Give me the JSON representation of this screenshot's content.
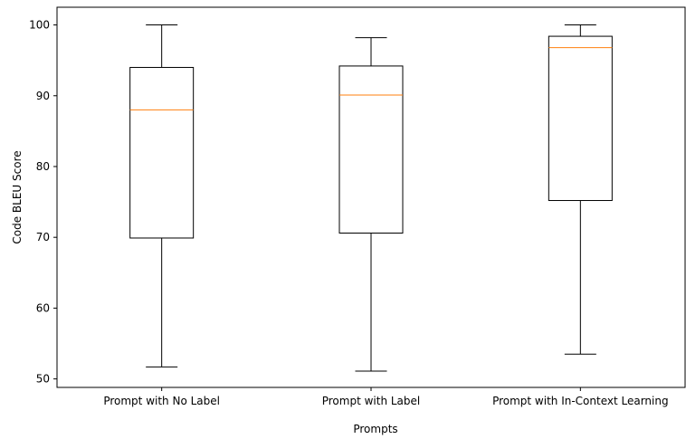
{
  "chart_data": {
    "type": "box",
    "title": "",
    "xlabel": "Prompts",
    "ylabel": "Code BLEU Score",
    "ylim": [
      48.8,
      102.5
    ],
    "yticks": [
      50,
      60,
      70,
      80,
      90,
      100
    ],
    "grid": false,
    "categories": [
      "Prompt with No Label",
      "Prompt with Label",
      "Prompt with In-Context Learning"
    ],
    "boxes": [
      {
        "whisker_low": 51.7,
        "q1": 69.9,
        "median": 88.0,
        "q3": 94.0,
        "whisker_high": 100.0
      },
      {
        "whisker_low": 51.1,
        "q1": 70.6,
        "median": 90.1,
        "q3": 94.2,
        "whisker_high": 98.2
      },
      {
        "whisker_low": 53.5,
        "q1": 75.2,
        "median": 96.8,
        "q3": 98.4,
        "whisker_high": 100.0
      }
    ],
    "colors": {
      "box": "#000000",
      "median": "#ff7f0e"
    }
  }
}
